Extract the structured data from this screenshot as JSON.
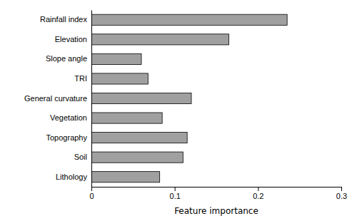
{
  "chart_data": {
    "type": "bar",
    "orientation": "horizontal",
    "categories": [
      "Lithology",
      "Soil",
      "Topography",
      "Vegetation",
      "General curvature",
      "TRI",
      "Slope angle",
      "Elevation",
      "Rainfall index"
    ],
    "values": [
      0.082,
      0.11,
      0.115,
      0.085,
      0.12,
      0.068,
      0.06,
      0.165,
      0.235
    ],
    "color": "#a0a0a0",
    "xlabel": "Feature importance",
    "xlim": [
      0,
      0.3
    ],
    "xticks": [
      0.0,
      0.1,
      0.2,
      0.3
    ],
    "grid": false
  }
}
